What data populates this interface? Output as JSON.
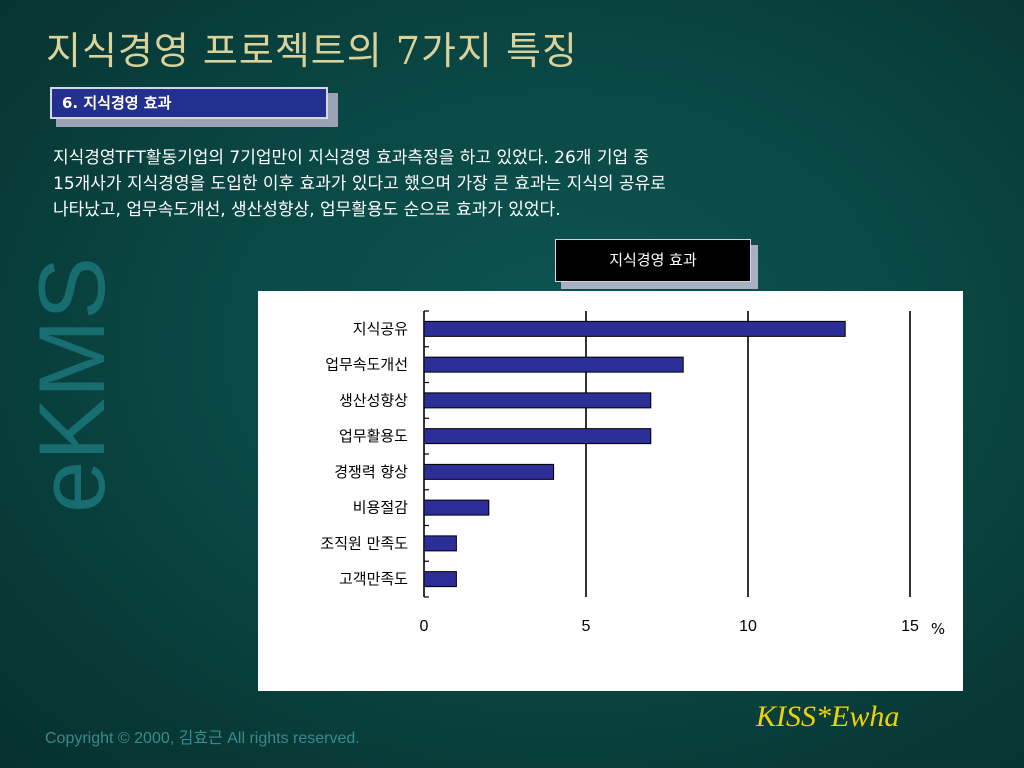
{
  "slide": {
    "title": "지식경영 프로젝트의 7가지 특징",
    "section_label": "6. 지식경영 효과",
    "description_lines": [
      "지식경영TFT활동기업의 7기업만이 지식경영 효과측정을 하고 있었다. 26개 기업 중",
      "15개사가 지식경영을 도입한 이후 효과가 있다고 했으며 가장 큰 효과는 지식의 공유로",
      "나타났고, 업무속도개선, 생산성향상, 업무활용도 순으로 효과가 있었다."
    ],
    "watermark": "eKMS",
    "chart_title": "지식경영 효과",
    "copyright": "Copyright © 2000, 김효근  All rights reserved.",
    "brand": "KISS*Ewha"
  },
  "colors": {
    "background": "#0a4845",
    "bar_fill": "#2b2e96",
    "title": "#d9d29a",
    "brand": "#f0d200"
  },
  "chart_data": {
    "type": "bar",
    "orientation": "horizontal",
    "categories": [
      "지식공유",
      "업무속도개선",
      "생산성향상",
      "업무활용도",
      "경쟁력 향상",
      "비용절감",
      "조직원 만족도",
      "고객만족도"
    ],
    "values": [
      13,
      8,
      7,
      7,
      4,
      2,
      1,
      1
    ],
    "xlim": [
      0,
      15
    ],
    "xticks": [
      "0",
      "5",
      "10",
      "15"
    ],
    "unit_label": "%",
    "grid": "vertical"
  }
}
